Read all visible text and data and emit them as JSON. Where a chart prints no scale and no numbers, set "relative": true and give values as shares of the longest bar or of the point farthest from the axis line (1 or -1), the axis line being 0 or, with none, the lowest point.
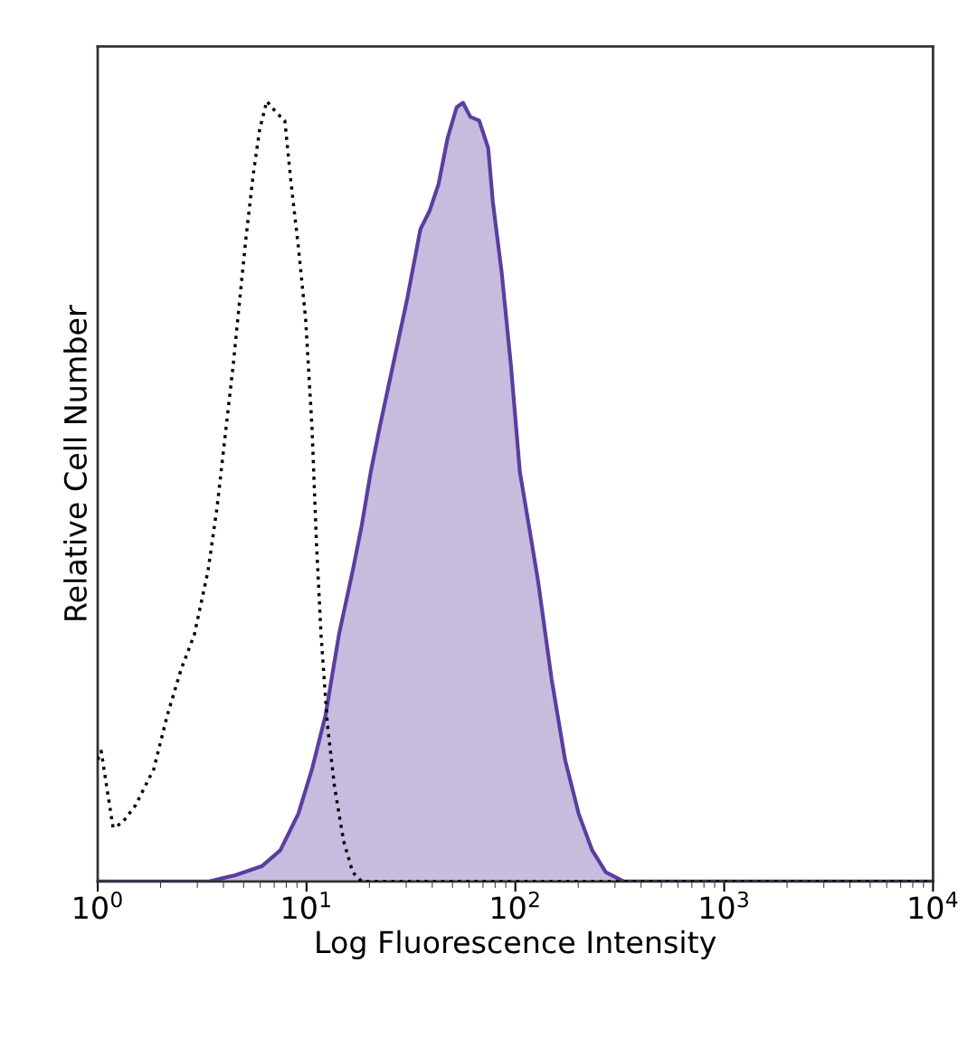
{
  "chart_data": {
    "type": "area",
    "relative": true,
    "log": "x",
    "xlabel": "Log Fluorescence Intensity",
    "ylabel": "Relative Cell Number",
    "xlim": [
      1,
      10000
    ],
    "xticks": [
      {
        "value": 1,
        "label": "10$^{0}$"
      },
      {
        "value": 10,
        "label": "10$^{1}$"
      },
      {
        "value": 100,
        "label": "10$^{2}$"
      },
      {
        "value": 1000,
        "label": "10$^{3}$"
      },
      {
        "value": 10000,
        "label": "10$^{4}$"
      }
    ],
    "tick_labels": "x",
    "grid": false,
    "series": [
      {
        "type": "line",
        "color": "#000000",
        "line_style": "dotted",
        "x": [
          1.0,
          1.04,
          1.105,
          1.185,
          1.309,
          1.52,
          1.855,
          2.154,
          2.502,
          2.906,
          3.375,
          3.728,
          4.12,
          4.46,
          4.78,
          5.13,
          5.55,
          5.96,
          6.45,
          7.13,
          7.87,
          8.44,
          9.14,
          9.9,
          10.62,
          11.16,
          11.73,
          12.58,
          13.62,
          15.05,
          16.63,
          18.37,
          22.4,
          10000
        ],
        "values": [
          0.156,
          0.167,
          0.121,
          0.069,
          0.075,
          0.098,
          0.144,
          0.213,
          0.271,
          0.317,
          0.398,
          0.479,
          0.582,
          0.663,
          0.744,
          0.825,
          0.905,
          0.963,
          1.0,
          0.986,
          0.975,
          0.894,
          0.813,
          0.721,
          0.582,
          0.433,
          0.317,
          0.202,
          0.121,
          0.052,
          0.012,
          0,
          0,
          0
        ]
      },
      {
        "color": "#5a3ea0",
        "line_style": "solid",
        "x": [
          1,
          3.375,
          4.55,
          6.14,
          7.49,
          9.14,
          10.62,
          12.33,
          14.31,
          16.63,
          18.37,
          20.3,
          22.4,
          26.0,
          30.2,
          35.1,
          38.8,
          42.9,
          47.3,
          52.3,
          56.1,
          60.8,
          67.1,
          74.1,
          78.0,
          86.1,
          95.1,
          105.1,
          116.1,
          128.3,
          149.0,
          173.0,
          200.9,
          233.3,
          271,
          330.8,
          10000
        ],
        "values": [
          0,
          0,
          0.008,
          0.02,
          0.04,
          0.087,
          0.144,
          0.213,
          0.317,
          0.398,
          0.456,
          0.525,
          0.582,
          0.663,
          0.744,
          0.836,
          0.859,
          0.894,
          0.952,
          0.992,
          0.998,
          0.98,
          0.975,
          0.94,
          0.871,
          0.779,
          0.663,
          0.525,
          0.456,
          0.386,
          0.26,
          0.156,
          0.087,
          0.04,
          0.012,
          0,
          0
        ]
      }
    ]
  }
}
